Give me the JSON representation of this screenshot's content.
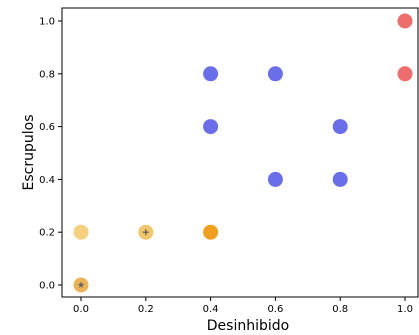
{
  "chart_data": {
    "type": "scatter",
    "title": "",
    "xlabel": "Desinhibido",
    "ylabel": "Escrupulos",
    "xlim": [
      -0.05,
      1.0
    ],
    "ylim": [
      -0.05,
      1.05
    ],
    "xticks": [
      "0.0",
      "0.2",
      "0.4",
      "0.6",
      "0.8",
      "1.0"
    ],
    "yticks": [
      "0.0",
      "0.2",
      "0.4",
      "0.6",
      "0.8",
      "1.0"
    ],
    "grid": false,
    "points": [
      {
        "x": 0.0,
        "y": 0.0,
        "color": "#e8a43a",
        "alpha": 0.85,
        "marker": "star"
      },
      {
        "x": 0.0,
        "y": 0.2,
        "color": "#f5d080",
        "alpha": 1.0,
        "marker": ""
      },
      {
        "x": 0.2,
        "y": 0.2,
        "color": "#f2c66a",
        "alpha": 1.0,
        "marker": "plus"
      },
      {
        "x": 0.4,
        "y": 0.2,
        "color": "#f0a020",
        "alpha": 1.0,
        "marker": ""
      },
      {
        "x": 0.4,
        "y": 0.8,
        "color": "#6a6ee8",
        "alpha": 1.0,
        "marker": ""
      },
      {
        "x": 0.6,
        "y": 0.8,
        "color": "#6a6ee8",
        "alpha": 1.0,
        "marker": ""
      },
      {
        "x": 0.4,
        "y": 0.6,
        "color": "#6a6ee8",
        "alpha": 1.0,
        "marker": ""
      },
      {
        "x": 0.8,
        "y": 0.6,
        "color": "#6a6ee8",
        "alpha": 1.0,
        "marker": ""
      },
      {
        "x": 0.6,
        "y": 0.4,
        "color": "#6a6ee8",
        "alpha": 1.0,
        "marker": ""
      },
      {
        "x": 0.8,
        "y": 0.4,
        "color": "#6a6ee8",
        "alpha": 1.0,
        "marker": ""
      },
      {
        "x": 1.0,
        "y": 1.0,
        "color": "#ee6e6e",
        "alpha": 1.0,
        "marker": ""
      },
      {
        "x": 1.0,
        "y": 0.8,
        "color": "#ee6e6e",
        "alpha": 1.0,
        "marker": ""
      }
    ]
  }
}
